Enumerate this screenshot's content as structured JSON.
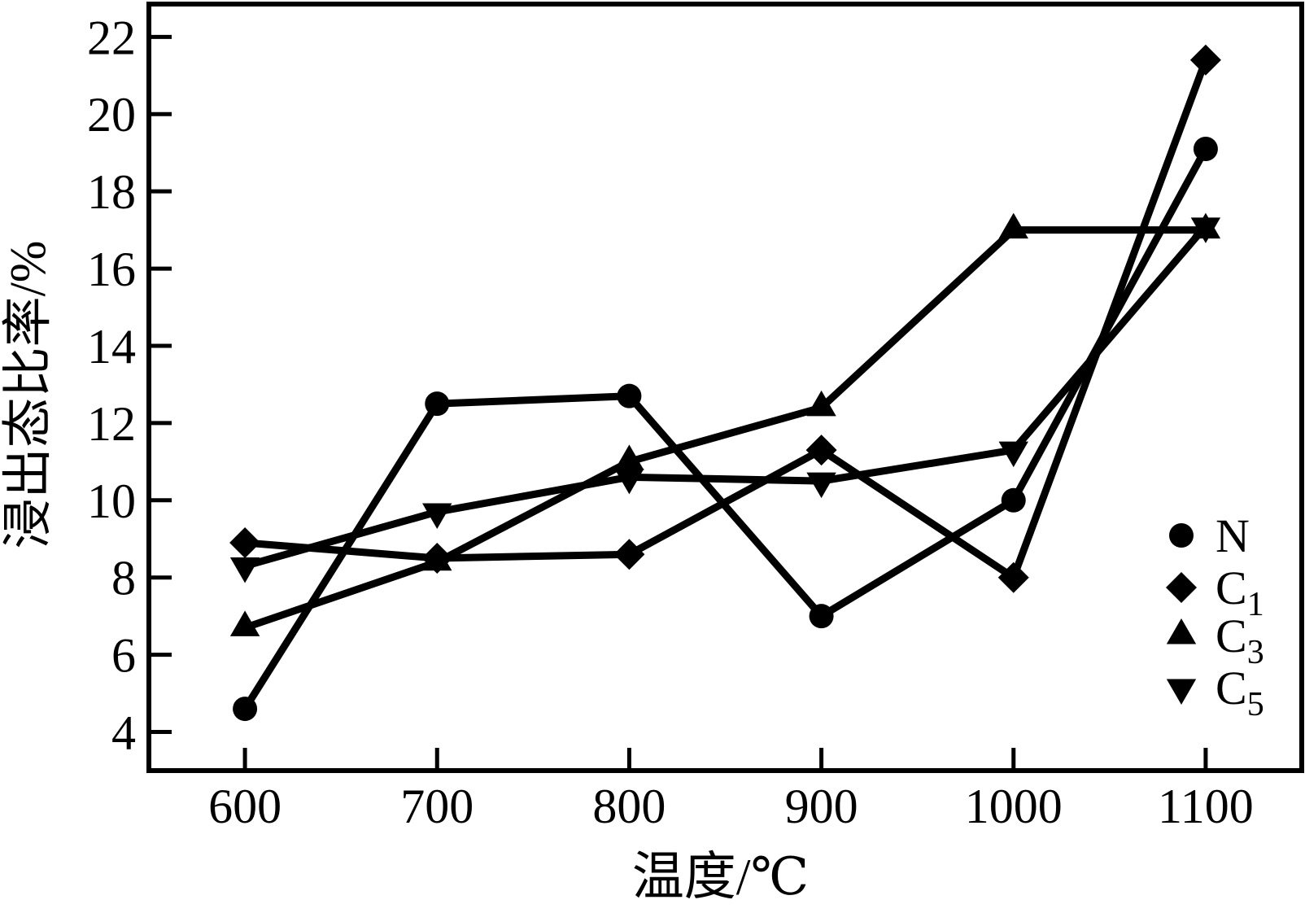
{
  "chart_data": {
    "type": "line",
    "title": "",
    "xlabel": "温度/℃",
    "ylabel": "浸出态比率/%",
    "x": [
      600,
      700,
      800,
      900,
      1000,
      1100
    ],
    "series": [
      {
        "name": "N",
        "label_base": "N",
        "label_sub": "",
        "marker": "circle",
        "values": [
          4.6,
          12.5,
          12.7,
          7.0,
          10.0,
          19.1
        ]
      },
      {
        "name": "C1",
        "label_base": "C",
        "label_sub": "1",
        "marker": "diamond",
        "values": [
          8.9,
          8.5,
          8.6,
          11.3,
          8.0,
          21.4
        ]
      },
      {
        "name": "C3",
        "label_base": "C",
        "label_sub": "3",
        "marker": "triangle-up",
        "values": [
          6.7,
          8.4,
          11.0,
          12.4,
          17.0,
          17.0
        ]
      },
      {
        "name": "C5",
        "label_base": "C",
        "label_sub": "5",
        "marker": "triangle-down",
        "values": [
          8.3,
          9.7,
          10.6,
          10.5,
          11.3,
          17.1
        ]
      }
    ],
    "xticks": [
      600,
      700,
      800,
      900,
      1000,
      1100
    ],
    "yticks": [
      4,
      6,
      8,
      10,
      12,
      14,
      16,
      18,
      20,
      22
    ],
    "xlim": [
      550,
      1150
    ],
    "ylim": [
      3,
      22.85
    ],
    "grid": false,
    "legend_position": "right-lower-inside",
    "line_color": "#000000",
    "background": "#ffffff"
  }
}
